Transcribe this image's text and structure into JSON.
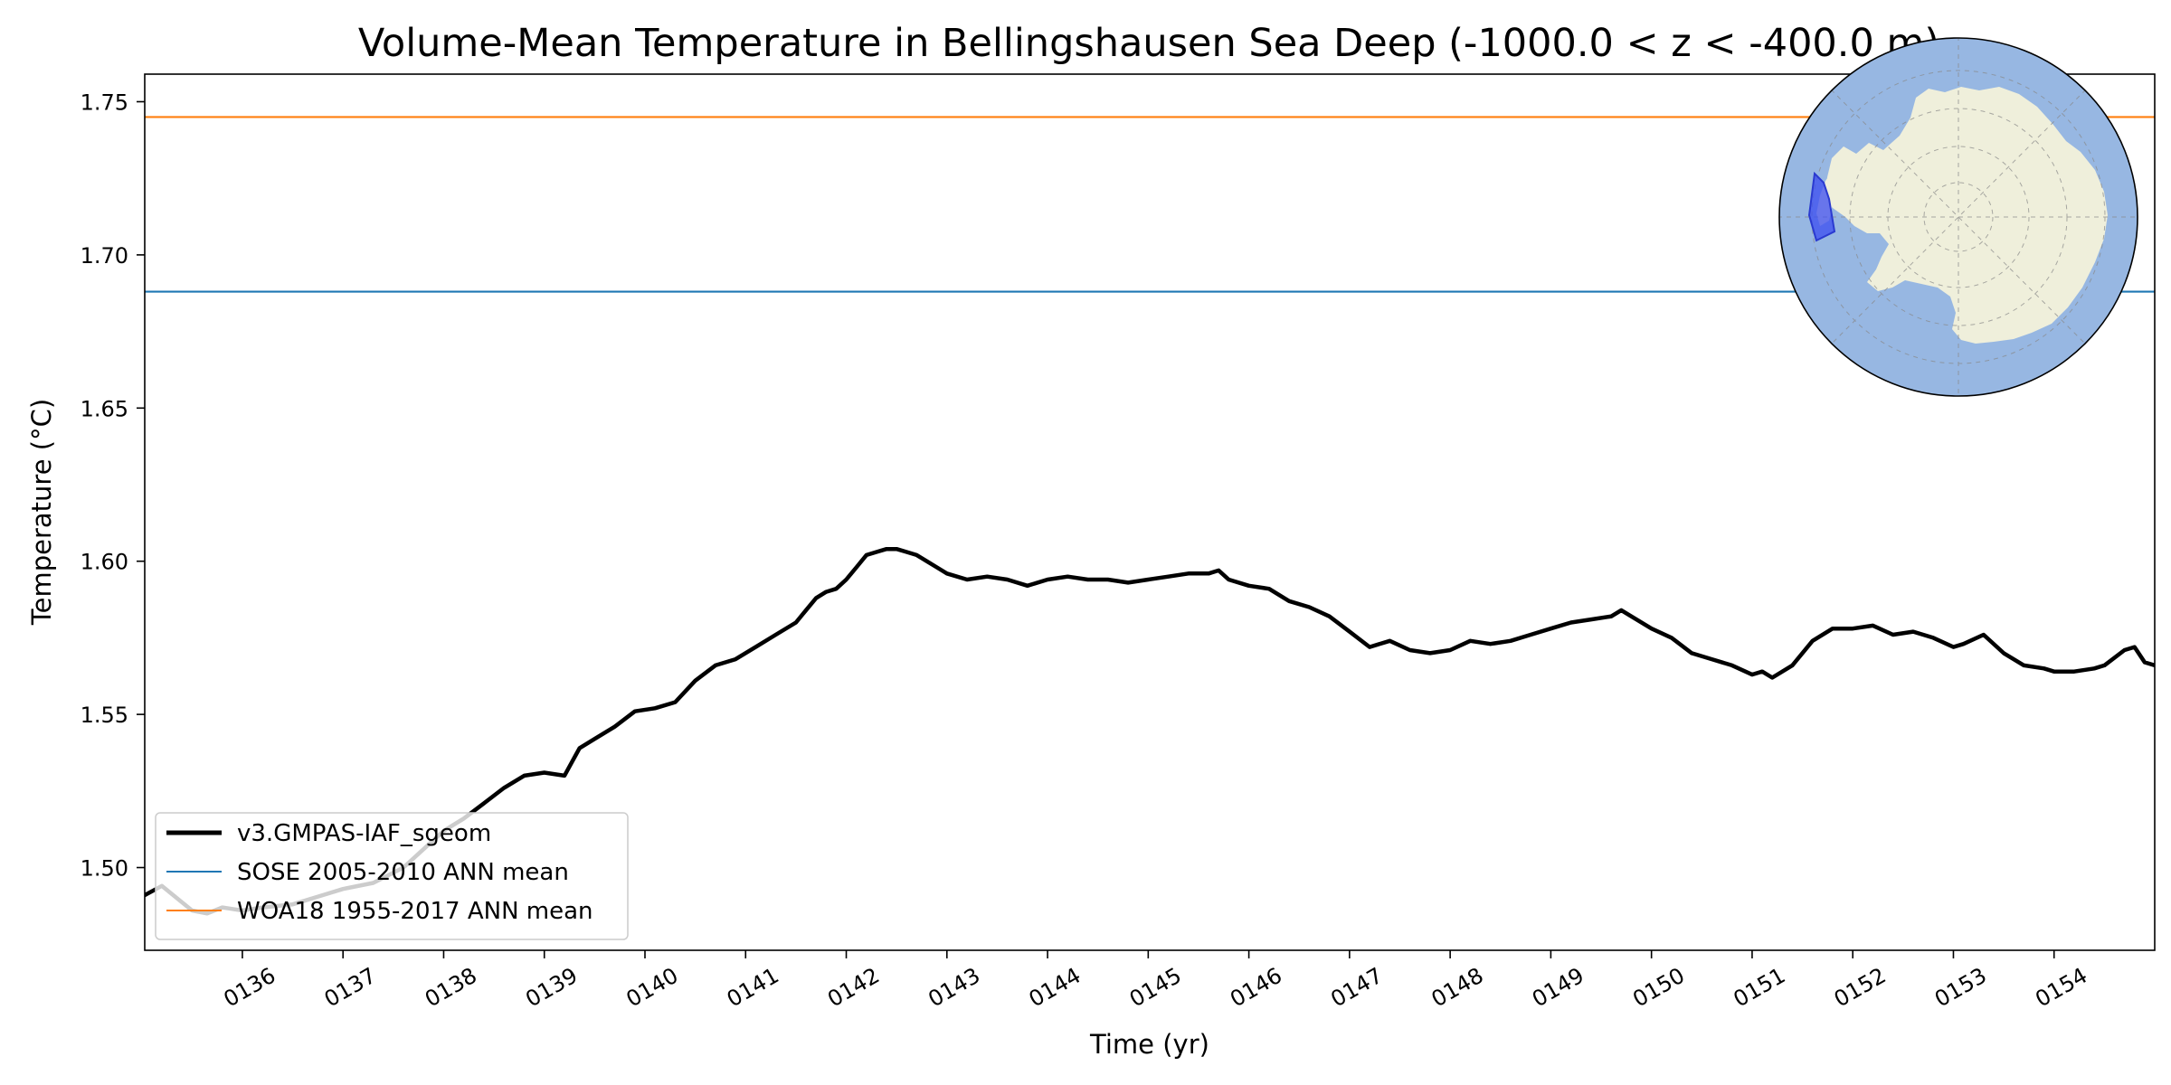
{
  "chart_data": {
    "type": "line",
    "title": "Volume-Mean Temperature in Bellingshausen Sea Deep (-1000.0 < z < -400.0 m)",
    "xlabel": "Time (yr)",
    "ylabel": "Temperature (°C)",
    "xlim": [
      135.03,
      155.0
    ],
    "ylim": [
      1.473,
      1.759
    ],
    "x_ticks": [
      136,
      137,
      138,
      139,
      140,
      141,
      142,
      143,
      144,
      145,
      146,
      147,
      148,
      149,
      150,
      151,
      152,
      153,
      154
    ],
    "x_tick_labels": [
      "0136",
      "0137",
      "0138",
      "0139",
      "0140",
      "0141",
      "0142",
      "0143",
      "0144",
      "0145",
      "0146",
      "0147",
      "0148",
      "0149",
      "0150",
      "0151",
      "0152",
      "0153",
      "0154"
    ],
    "y_ticks": [
      1.5,
      1.55,
      1.6,
      1.65,
      1.7,
      1.75
    ],
    "y_tick_labels": [
      "1.50",
      "1.55",
      "1.60",
      "1.65",
      "1.70",
      "1.75"
    ],
    "legend_position": "lower-left",
    "series": [
      {
        "name": "v3.GMPAS-IAF_sgeom",
        "color": "#000000",
        "style": "thick-line",
        "x": [
          135.03,
          135.2,
          135.35,
          135.5,
          135.65,
          135.8,
          136.0,
          136.2,
          136.5,
          136.8,
          137.0,
          137.3,
          137.6,
          137.8,
          138.0,
          138.2,
          138.4,
          138.6,
          138.8,
          139.0,
          139.2,
          139.35,
          139.5,
          139.7,
          139.9,
          140.1,
          140.3,
          140.5,
          140.7,
          140.9,
          141.1,
          141.3,
          141.5,
          141.6,
          141.7,
          141.8,
          141.9,
          142.0,
          142.1,
          142.2,
          142.3,
          142.4,
          142.5,
          142.6,
          142.7,
          142.8,
          142.9,
          143.0,
          143.2,
          143.4,
          143.6,
          143.8,
          144.0,
          144.2,
          144.4,
          144.6,
          144.8,
          145.0,
          145.2,
          145.4,
          145.6,
          145.7,
          145.8,
          146.0,
          146.2,
          146.4,
          146.6,
          146.8,
          147.0,
          147.2,
          147.4,
          147.6,
          147.8,
          148.0,
          148.2,
          148.4,
          148.6,
          148.8,
          149.0,
          149.2,
          149.4,
          149.6,
          149.7,
          149.8,
          150.0,
          150.2,
          150.4,
          150.6,
          150.8,
          151.0,
          151.1,
          151.2,
          151.4,
          151.6,
          151.8,
          152.0,
          152.2,
          152.4,
          152.6,
          152.8,
          153.0,
          153.1,
          153.3,
          153.5,
          153.7,
          153.9,
          154.0,
          154.2,
          154.4,
          154.5,
          154.7,
          154.8,
          154.9,
          155.0
        ],
        "y": [
          1.491,
          1.494,
          1.49,
          1.486,
          1.485,
          1.487,
          1.486,
          1.487,
          1.488,
          1.491,
          1.493,
          1.495,
          1.5,
          1.506,
          1.512,
          1.516,
          1.521,
          1.526,
          1.53,
          1.531,
          1.53,
          1.539,
          1.542,
          1.546,
          1.551,
          1.552,
          1.554,
          1.561,
          1.566,
          1.568,
          1.572,
          1.576,
          1.58,
          1.584,
          1.588,
          1.59,
          1.591,
          1.594,
          1.598,
          1.602,
          1.603,
          1.604,
          1.604,
          1.603,
          1.602,
          1.6,
          1.598,
          1.596,
          1.594,
          1.595,
          1.594,
          1.592,
          1.594,
          1.595,
          1.594,
          1.594,
          1.593,
          1.594,
          1.595,
          1.596,
          1.596,
          1.597,
          1.594,
          1.592,
          1.591,
          1.587,
          1.585,
          1.582,
          1.577,
          1.572,
          1.574,
          1.571,
          1.57,
          1.571,
          1.574,
          1.573,
          1.574,
          1.576,
          1.578,
          1.58,
          1.581,
          1.582,
          1.584,
          1.582,
          1.578,
          1.575,
          1.57,
          1.568,
          1.566,
          1.563,
          1.564,
          1.562,
          1.566,
          1.574,
          1.578,
          1.578,
          1.579,
          1.576,
          1.577,
          1.575,
          1.572,
          1.573,
          1.576,
          1.57,
          1.566,
          1.565,
          1.564,
          1.564,
          1.565,
          1.566,
          1.571,
          1.572,
          1.567,
          1.566
        ]
      },
      {
        "name": "SOSE 2005-2010 ANN mean",
        "color": "#1f77b4",
        "style": "horizontal-line",
        "value": 1.688
      },
      {
        "name": "WOA18 1955-2017 ANN mean",
        "color": "#ff7f0e",
        "style": "horizontal-line",
        "value": 1.745
      }
    ],
    "inset_map": {
      "region": "Bellingshausen Sea",
      "projection": "south-polar-stereographic",
      "ocean_color": "#97b7e2",
      "land_color": "#efefdb",
      "region_color": "#3b4cf0"
    }
  }
}
